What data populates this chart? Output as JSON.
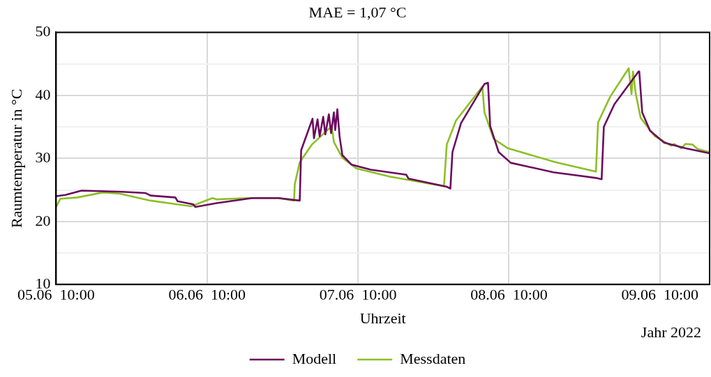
{
  "chart_data": {
    "type": "line",
    "title": "MAE = 1,07 °C",
    "xlabel": "Uhrzeit",
    "ylabel": "Raumtemperatur in °C",
    "annotations": [
      "Jahr 2022"
    ],
    "xlim": [
      "2022-06-05T10:00",
      "2022-06-09T17:54"
    ],
    "xticks": [
      {
        "value": "2022-06-05T10:00",
        "label": "05.06  10:00"
      },
      {
        "value": "2022-06-06T10:00",
        "label": "06.06  10:00"
      },
      {
        "value": "2022-06-07T10:00",
        "label": "07.06  10:00"
      },
      {
        "value": "2022-06-08T10:00",
        "label": "08.06  10:00"
      },
      {
        "value": "2022-06-09T10:00",
        "label": "09.06  10:00"
      }
    ],
    "ylim": [
      10,
      50
    ],
    "yticks": [
      10,
      {
        "value": 15,
        "label": null
      },
      20,
      {
        "value": 25,
        "label": null
      },
      30,
      {
        "value": 35,
        "label": null
      },
      40,
      {
        "value": 45,
        "label": null
      },
      50
    ],
    "grid": true,
    "legend": "bottom",
    "marker": "none",
    "line_style": "solid",
    "series": [
      {
        "name": "Modell",
        "color": "#6b0a5e",
        "x": [
          "2022-06-05T10:00",
          "2022-06-05T11:28",
          "2022-06-05T14:04",
          "2022-06-05T20:30",
          "2022-06-06T00:14",
          "2022-06-06T01:01",
          "2022-06-06T04:58",
          "2022-06-06T05:19",
          "2022-06-06T07:48",
          "2022-06-06T08:08",
          "2022-06-06T11:31",
          "2022-06-06T17:10",
          "2022-06-06T21:21",
          "2022-06-07T00:44",
          "2022-06-07T00:58",
          "2022-06-07T02:46",
          "2022-06-07T03:00",
          "2022-06-07T03:34",
          "2022-06-07T03:54",
          "2022-06-07T04:28",
          "2022-06-07T04:48",
          "2022-06-07T05:22",
          "2022-06-07T05:43",
          "2022-06-07T06:10",
          "2022-06-07T06:23",
          "2022-06-07T06:43",
          "2022-06-07T07:04",
          "2022-06-07T07:31",
          "2022-06-07T08:59",
          "2022-06-07T12:02",
          "2022-06-07T17:41",
          "2022-06-07T18:01",
          "2022-06-08T00:07",
          "2022-06-08T00:41",
          "2022-06-08T01:01",
          "2022-06-08T02:23",
          "2022-06-08T06:06",
          "2022-06-08T06:40",
          "2022-06-08T07:01",
          "2022-06-08T08:22",
          "2022-06-08T10:17",
          "2022-06-08T17:04",
          "2022-06-08T23:50",
          "2022-06-09T00:44",
          "2022-06-09T01:05",
          "2022-06-09T02:46",
          "2022-06-09T06:37",
          "2022-06-09T06:43",
          "2022-06-09T07:11",
          "2022-06-09T08:25",
          "2022-06-09T10:41",
          "2022-06-09T14:04",
          "2022-06-09T17:54"
        ],
        "values": [
          24.0,
          24.2,
          24.9,
          24.7,
          24.5,
          24.1,
          23.8,
          23.2,
          22.7,
          22.3,
          22.9,
          23.7,
          23.7,
          23.3,
          31.3,
          36.3,
          33.2,
          36.2,
          33.5,
          36.6,
          33.8,
          37.0,
          34.0,
          37.3,
          34.5,
          37.8,
          33.5,
          30.5,
          29.0,
          28.2,
          27.4,
          26.8,
          25.5,
          25.2,
          31.0,
          35.6,
          41.8,
          42.0,
          35.1,
          31.0,
          29.3,
          27.8,
          26.9,
          26.7,
          35.0,
          38.6,
          43.8,
          43.8,
          37.3,
          34.4,
          32.5,
          31.6,
          30.8
        ]
      },
      {
        "name": "Messdaten",
        "color": "#8cbf26",
        "x": [
          "2022-06-05T10:00",
          "2022-06-05T10:41",
          "2022-06-05T13:23",
          "2022-06-05T17:27",
          "2022-06-05T20:10",
          "2022-06-06T01:01",
          "2022-06-06T07:28",
          "2022-06-06T10:51",
          "2022-06-06T11:31",
          "2022-06-06T16:29",
          "2022-06-06T21:21",
          "2022-06-06T23:50",
          "2022-06-06T23:57",
          "2022-06-07T00:44",
          "2022-06-07T02:40",
          "2022-06-07T05:49",
          "2022-06-07T06:10",
          "2022-06-07T07:31",
          "2022-06-07T09:46",
          "2022-06-07T15:05",
          "2022-06-07T23:40",
          "2022-06-08T00:07",
          "2022-06-08T01:35",
          "2022-06-08T05:46",
          "2022-06-08T06:06",
          "2022-06-08T07:34",
          "2022-06-08T09:50",
          "2022-06-08T17:24",
          "2022-06-08T23:50",
          "2022-06-09T00:10",
          "2022-06-09T02:06",
          "2022-06-09T05:02",
          "2022-06-09T05:29",
          "2022-06-09T05:43",
          "2022-06-09T06:10",
          "2022-06-09T06:57",
          "2022-06-09T09:13",
          "2022-06-09T11:49",
          "2022-06-09T12:16",
          "2022-06-09T13:23",
          "2022-06-09T14:04",
          "2022-06-09T15:11",
          "2022-06-09T15:59",
          "2022-06-09T17:54"
        ],
        "values": [
          22.3,
          23.6,
          23.8,
          24.6,
          24.4,
          23.3,
          22.4,
          23.7,
          23.5,
          23.7,
          23.7,
          23.3,
          25.9,
          29.4,
          32.2,
          35.1,
          32.6,
          30.1,
          28.4,
          27.1,
          25.6,
          32.2,
          36.0,
          41.4,
          37.3,
          33.1,
          31.6,
          29.4,
          27.9,
          35.7,
          39.8,
          44.3,
          40.2,
          43.8,
          40.2,
          36.4,
          33.5,
          32.0,
          32.3,
          31.6,
          32.3,
          32.2,
          31.5,
          31.0
        ]
      }
    ]
  }
}
